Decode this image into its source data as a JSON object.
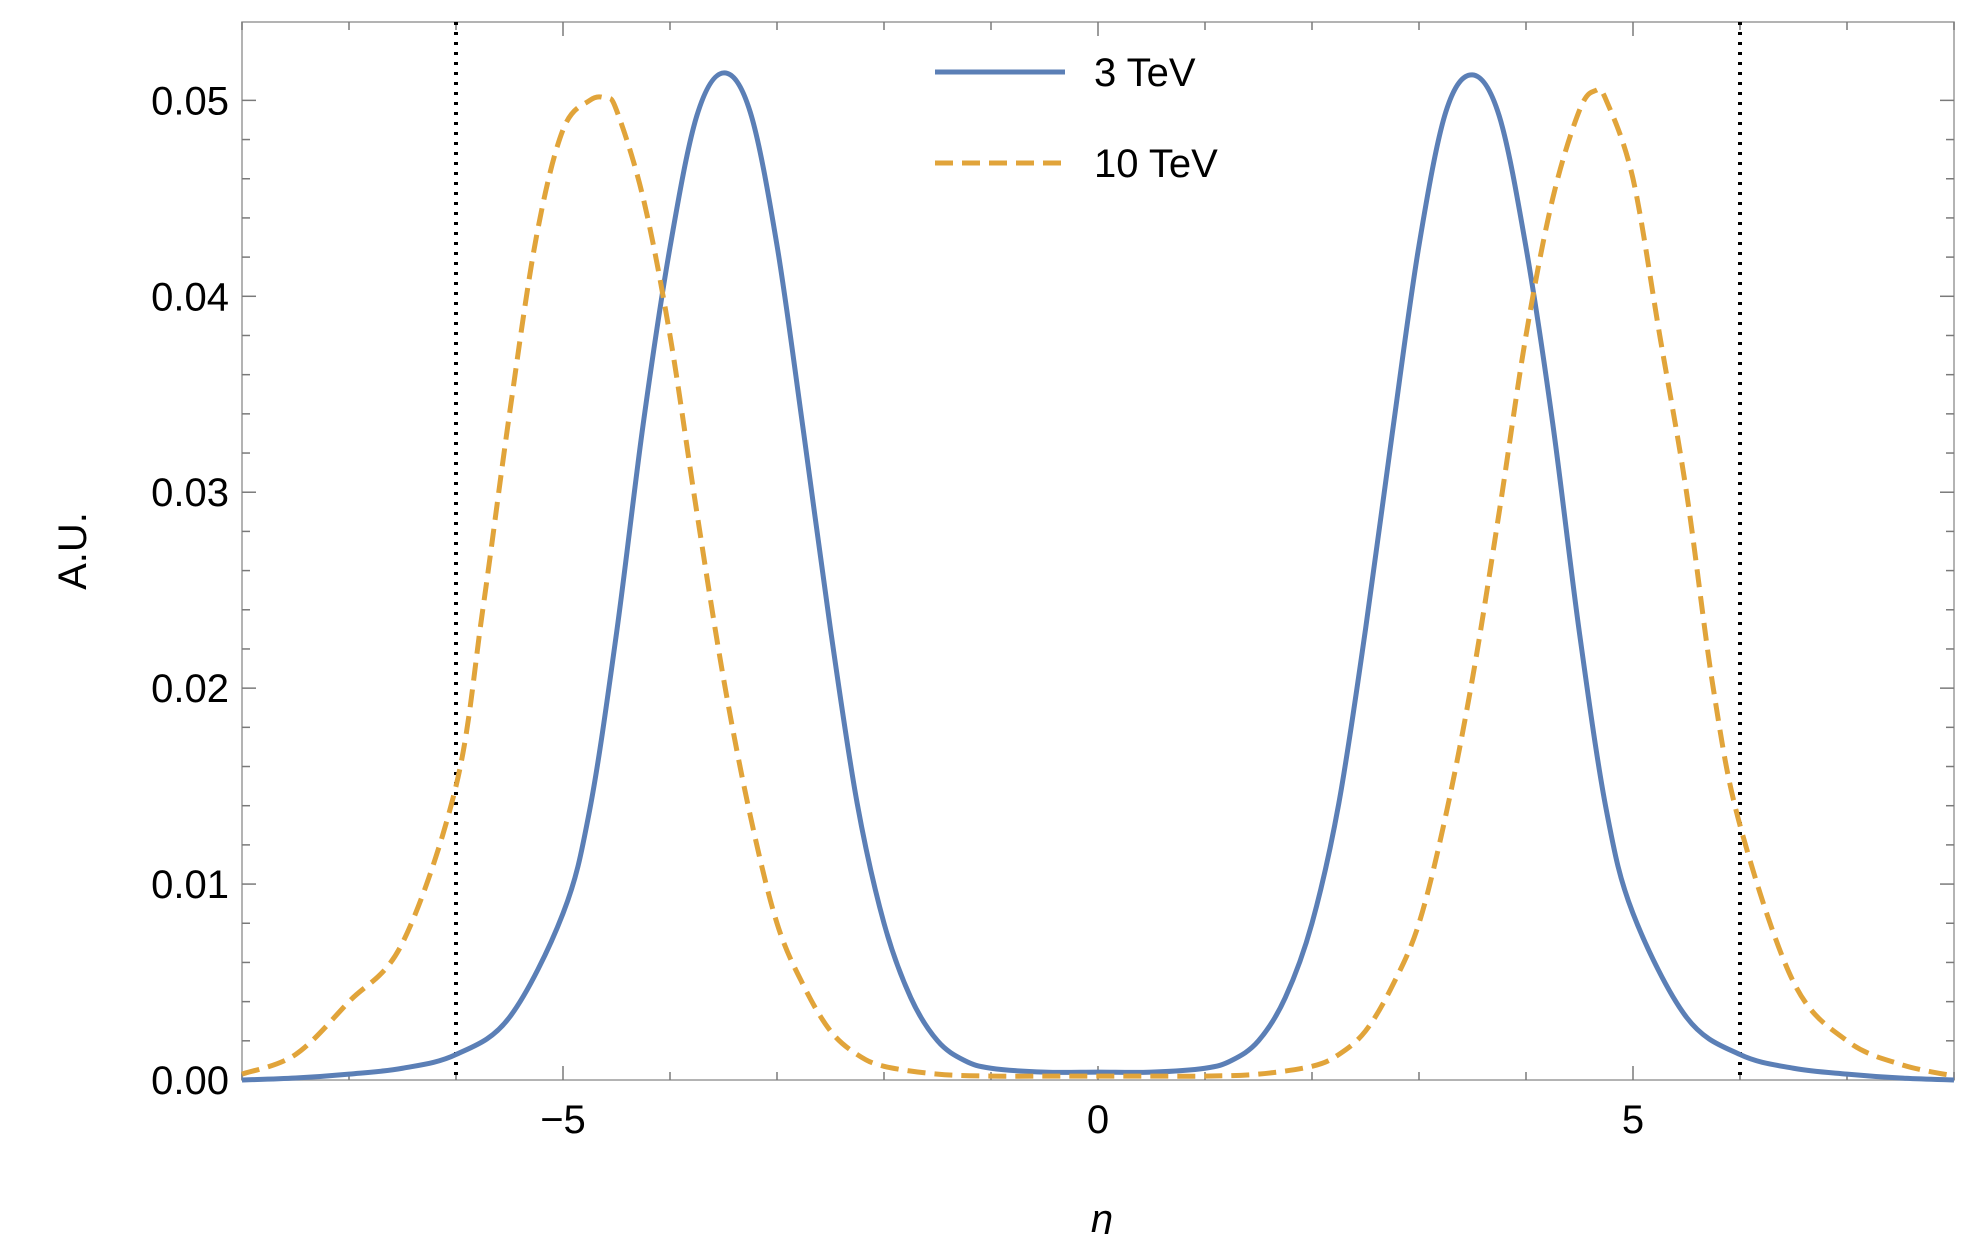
{
  "chart_data": {
    "type": "line",
    "title": "",
    "xlabel": "η",
    "ylabel": "A.U.",
    "xlim": [
      -8,
      8
    ],
    "ylim": [
      0,
      0.054
    ],
    "x_ticks": [
      -5,
      0,
      5
    ],
    "x_tick_labels": [
      "−5",
      "0",
      "5"
    ],
    "y_ticks": [
      0.0,
      0.01,
      0.02,
      0.03,
      0.04,
      0.05
    ],
    "y_tick_labels": [
      "0.00",
      "0.01",
      "0.02",
      "0.03",
      "0.04",
      "0.05"
    ],
    "grid": false,
    "legend_position": "top-center",
    "vertical_lines": [
      -6,
      6
    ],
    "series": [
      {
        "name": "3 TeV",
        "color": "#5b7fb6",
        "style": "solid",
        "x": [
          -8,
          -7.5,
          -7,
          -6.5,
          -6,
          -5.5,
          -5,
          -4.75,
          -4.5,
          -4.25,
          -4,
          -3.75,
          -3.5,
          -3.25,
          -3,
          -2.75,
          -2.5,
          -2.25,
          -2,
          -1.75,
          -1.5,
          -1.25,
          -1,
          -0.5,
          0,
          0.5,
          1,
          1.25,
          1.5,
          1.75,
          2,
          2.25,
          2.5,
          2.75,
          3,
          3.25,
          3.5,
          3.75,
          4,
          4.25,
          4.5,
          4.75,
          5,
          5.5,
          6,
          6.5,
          7,
          7.5,
          8
        ],
        "y": [
          0.0,
          0.0001,
          0.0003,
          0.0006,
          0.0013,
          0.0032,
          0.0085,
          0.0138,
          0.0228,
          0.0335,
          0.0425,
          0.0492,
          0.0514,
          0.0494,
          0.0426,
          0.033,
          0.023,
          0.0141,
          0.008,
          0.0042,
          0.002,
          0.001,
          0.0006,
          0.0004,
          0.0004,
          0.0004,
          0.0006,
          0.001,
          0.002,
          0.0042,
          0.008,
          0.0141,
          0.023,
          0.033,
          0.0426,
          0.0494,
          0.0513,
          0.0492,
          0.0425,
          0.0335,
          0.0228,
          0.0138,
          0.0085,
          0.0032,
          0.0013,
          0.0006,
          0.0003,
          0.0001,
          0.0
        ]
      },
      {
        "name": "10 TeV",
        "color": "#e1a43a",
        "style": "dashed",
        "x": [
          -8,
          -7.5,
          -7,
          -6.5,
          -6,
          -5.75,
          -5.5,
          -5.25,
          -5,
          -4.75,
          -4.6,
          -4.5,
          -4.25,
          -4,
          -3.75,
          -3.5,
          -3.25,
          -3,
          -2.75,
          -2.5,
          -2.25,
          -2,
          -1.5,
          -1,
          -0.5,
          0,
          0.5,
          1,
          1.5,
          2,
          2.25,
          2.5,
          2.75,
          3,
          3.25,
          3.5,
          3.75,
          4,
          4.25,
          4.5,
          4.65,
          4.75,
          5,
          5.25,
          5.5,
          5.75,
          6,
          6.5,
          7,
          7.5,
          8
        ],
        "y": [
          0.0003,
          0.0013,
          0.004,
          0.007,
          0.015,
          0.024,
          0.034,
          0.043,
          0.0485,
          0.05,
          0.0501,
          0.0495,
          0.045,
          0.038,
          0.029,
          0.0205,
          0.0135,
          0.008,
          0.0048,
          0.0025,
          0.0013,
          0.0007,
          0.0003,
          0.0002,
          0.0002,
          0.0002,
          0.0002,
          0.0002,
          0.0003,
          0.0007,
          0.0013,
          0.0025,
          0.0048,
          0.008,
          0.0135,
          0.0205,
          0.029,
          0.038,
          0.045,
          0.0495,
          0.0505,
          0.05,
          0.046,
          0.038,
          0.03,
          0.02,
          0.013,
          0.005,
          0.002,
          0.0008,
          0.0002
        ]
      }
    ]
  }
}
